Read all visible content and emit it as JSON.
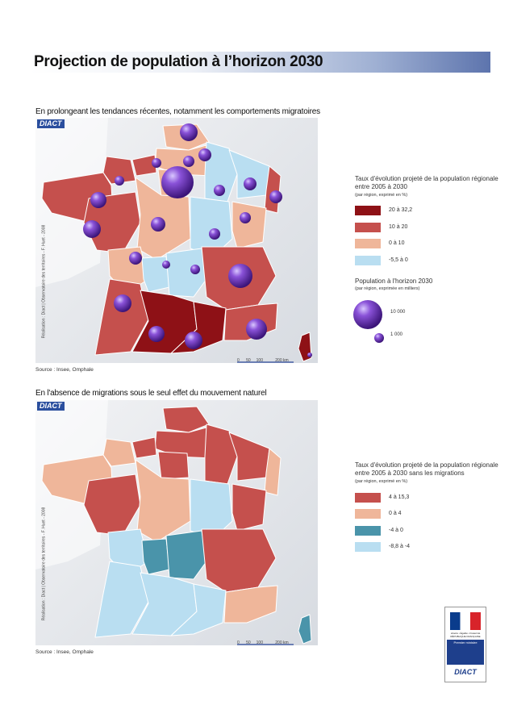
{
  "title": "Projection de population à l’horizon 2030",
  "map1": {
    "subtitle": "En prolongeant les tendances récentes, notamment les comportements migratoires",
    "logo": "DIACT",
    "credit": "Réalisation : Diact | Observatoire des territoires - F. Huet - 2008",
    "source": "Source : Insee, Omphale",
    "scale_labels": [
      "0",
      "50",
      "100",
      "200 km"
    ],
    "legend": {
      "title": "Taux d'évolution projeté de la population régionale entre 2005 à 2030",
      "note": "(par région, exprimé en %)",
      "classes": [
        {
          "label": "20 à 32,2",
          "color": "#8e1116"
        },
        {
          "label": "10 à 20",
          "color": "#c5504d"
        },
        {
          "label": "0 à 10",
          "color": "#efb69a"
        },
        {
          "label": "-5,5 à 0",
          "color": "#b9def1"
        }
      ],
      "bubbles_title": "Population à l'horizon 2030",
      "bubbles_note": "(par région, exprimée en milliers)",
      "bubble_values": [
        "10 000",
        "1 000"
      ],
      "bubble_color": "#6a2fb5"
    }
  },
  "map2": {
    "subtitle": "En l'absence de migrations sous le seul effet du mouvement naturel",
    "logo": "DIACT",
    "credit": "Réalisation : Diact | Observatoire des territoires - F. Huet - 2008",
    "source": "Source : Insee, Omphale",
    "scale_labels": [
      "0",
      "50",
      "100",
      "200 km"
    ],
    "legend": {
      "title": "Taux d'évolution projeté de la population régionale entre 2005 à 2030 sans les migrations",
      "note": "(par région, exprimé en %)",
      "classes": [
        {
          "label": "4 à 15,3",
          "color": "#c5504d"
        },
        {
          "label": "0 à 4",
          "color": "#efb69a"
        },
        {
          "label": "-4 à 0",
          "color": "#4a94aa"
        },
        {
          "label": "-8,8 à -4",
          "color": "#b9def1"
        }
      ]
    }
  },
  "gov_logo": {
    "motto": "Liberté • Égalité • Fraternité RÉPUBLIQUE FRANÇAISE",
    "pm": "Premier ministre",
    "diact": "DIACT"
  }
}
